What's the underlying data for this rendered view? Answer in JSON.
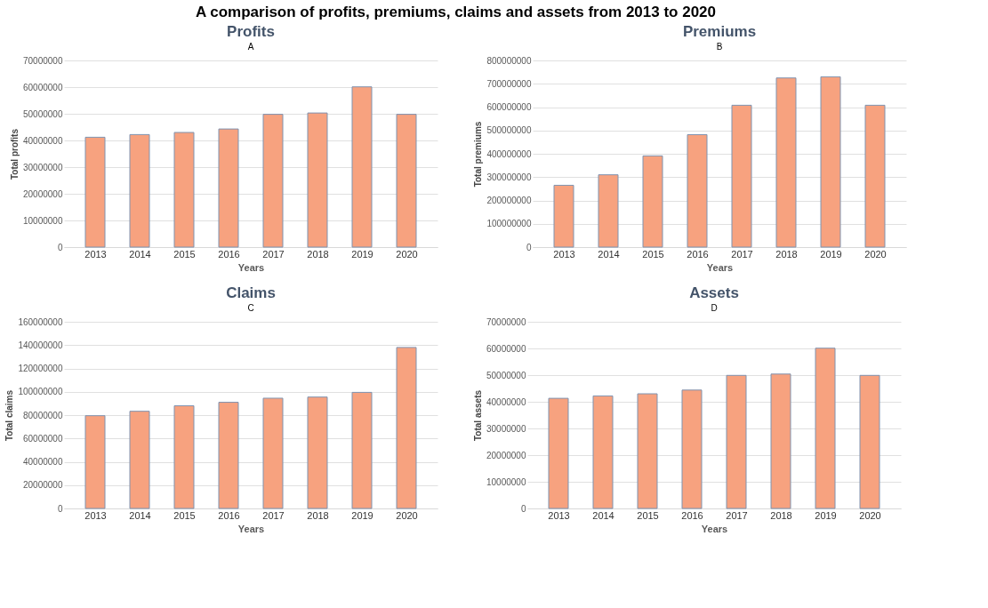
{
  "chart_data": [
    {
      "type": "bar",
      "title": "Profits",
      "annotations": [
        "A comparison of profits, premiums, claims and assets from 2013 to 2020",
        "A"
      ],
      "xlabel": "Years",
      "ylabel": "Total profits",
      "categories": [
        "2013",
        "2014",
        "2015",
        "2016",
        "2017",
        "2018",
        "2019",
        "2020"
      ],
      "values": [
        41200000,
        42200000,
        43000000,
        44300000,
        49800000,
        50300000,
        60100000,
        49800000
      ],
      "color": "#f7a27f",
      "ylim": [
        0,
        70000000
      ],
      "yticks": [
        0,
        10000000,
        20000000,
        30000000,
        40000000,
        50000000,
        60000000,
        70000000
      ],
      "grid": "y"
    },
    {
      "type": "bar",
      "title": "Premiums",
      "annotations": [
        "B"
      ],
      "xlabel": "Years",
      "ylabel": "Total premiums",
      "categories": [
        "2013",
        "2014",
        "2015",
        "2016",
        "2017",
        "2018",
        "2019",
        "2020"
      ],
      "values": [
        265000000,
        310000000,
        391000000,
        482000000,
        608000000,
        725000000,
        730000000,
        608000000
      ],
      "color": "#f7a27f",
      "ylim": [
        0,
        800000000
      ],
      "yticks": [
        0,
        100000000,
        200000000,
        300000000,
        400000000,
        500000000,
        600000000,
        700000000,
        800000000
      ],
      "grid": "y"
    },
    {
      "type": "bar",
      "title": "Claims",
      "annotations": [
        "C"
      ],
      "xlabel": "Years",
      "ylabel": "Total claims",
      "categories": [
        "2013",
        "2014",
        "2015",
        "2016",
        "2017",
        "2018",
        "2019",
        "2020"
      ],
      "values": [
        79500000,
        83300000,
        88000000,
        91000000,
        94500000,
        95500000,
        99500000,
        138000000
      ],
      "color": "#f7a27f",
      "ylim": [
        0,
        160000000
      ],
      "yticks": [
        0,
        20000000,
        40000000,
        60000000,
        80000000,
        100000000,
        120000000,
        140000000,
        160000000
      ],
      "grid": "y"
    },
    {
      "type": "bar",
      "title": "Assets",
      "annotations": [
        "D"
      ],
      "xlabel": "Years",
      "ylabel": "Total assets",
      "categories": [
        "2013",
        "2014",
        "2015",
        "2016",
        "2017",
        "2018",
        "2019",
        "2020"
      ],
      "values": [
        41300000,
        42200000,
        43000000,
        44400000,
        49900000,
        50400000,
        60100000,
        49900000
      ],
      "color": "#f7a27f",
      "ylim": [
        0,
        70000000
      ],
      "yticks": [
        0,
        10000000,
        20000000,
        30000000,
        40000000,
        50000000,
        60000000,
        70000000
      ],
      "grid": "y"
    }
  ]
}
